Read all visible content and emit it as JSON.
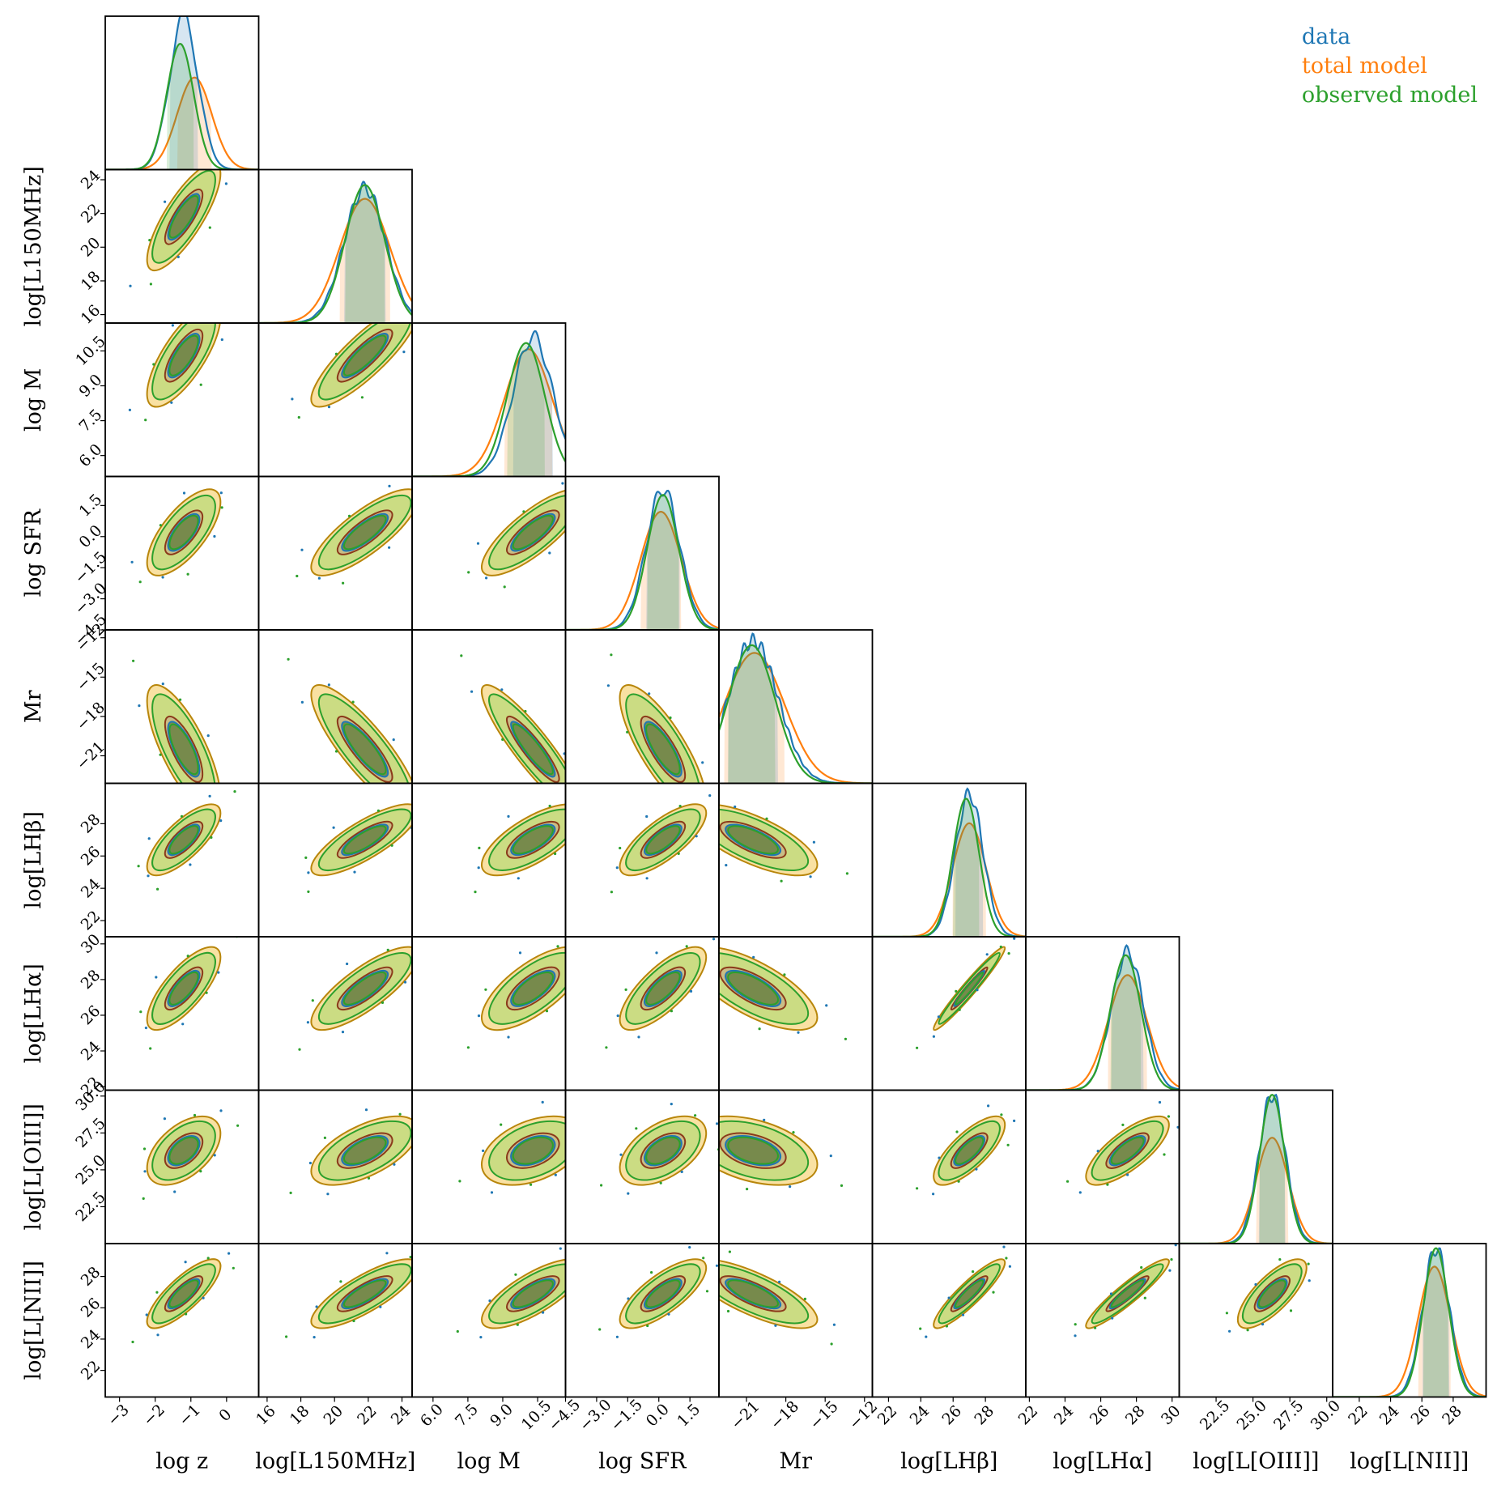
{
  "chart_data": {
    "type": "corner",
    "variables": [
      {
        "key": "logz",
        "label": "log z",
        "ticks": [
          "−3",
          "−2",
          "−1",
          "0"
        ],
        "tick_values": [
          -3,
          -2,
          -1,
          0
        ],
        "range": [
          -3.4,
          0.9
        ]
      },
      {
        "key": "L150",
        "label": "log[L150MHz]",
        "ticks": [
          "16",
          "18",
          "20",
          "22",
          "24"
        ],
        "tick_values": [
          16,
          18,
          20,
          22,
          24
        ],
        "range": [
          15.5,
          24.6
        ]
      },
      {
        "key": "logM",
        "label": "log M",
        "ticks": [
          "6.0",
          "7.5",
          "9.0",
          "10.5"
        ],
        "tick_values": [
          6.0,
          7.5,
          9.0,
          10.5
        ],
        "range": [
          5.1,
          11.7
        ]
      },
      {
        "key": "SFR",
        "label": "log SFR",
        "ticks": [
          "−4.5",
          "−3.0",
          "−1.5",
          "0.0",
          "1.5"
        ],
        "tick_values": [
          -4.5,
          -3.0,
          -1.5,
          0.0,
          1.5
        ],
        "range": [
          -4.5,
          2.9
        ]
      },
      {
        "key": "Mr",
        "label": "Mr",
        "ticks": [
          "−21",
          "−18",
          "−15",
          "−12"
        ],
        "tick_values": [
          -21,
          -18,
          -15,
          -12
        ],
        "range": [
          -23.1,
          -11.4
        ]
      },
      {
        "key": "LHb",
        "label": "log[LHβ]",
        "ticks": [
          "22",
          "24",
          "26",
          "28"
        ],
        "tick_values": [
          22,
          24,
          26,
          28
        ],
        "range": [
          21.0,
          30.5
        ]
      },
      {
        "key": "LHa",
        "label": "log[LHα]",
        "ticks": [
          "22",
          "24",
          "26",
          "28",
          "30"
        ],
        "tick_values": [
          22,
          24,
          26,
          28,
          30
        ],
        "range": [
          21.8,
          30.4
        ]
      },
      {
        "key": "LOIII",
        "label": "log[L[OIII]]",
        "ticks": [
          "22.5",
          "25.0",
          "27.5",
          "30.0"
        ],
        "tick_values": [
          22.5,
          25.0,
          27.5,
          30.0
        ],
        "range": [
          20.0,
          30.4
        ]
      },
      {
        "key": "LNII",
        "label": "log[L[NII]]",
        "ticks": [
          "22",
          "24",
          "26",
          "28"
        ],
        "tick_values": [
          22,
          24,
          26,
          28
        ],
        "range": [
          20.3,
          30.1
        ]
      }
    ],
    "series": [
      {
        "name": "data",
        "color": "#1f77b4"
      },
      {
        "name": "total model",
        "color": "#ff7f0e"
      },
      {
        "name": "observed model",
        "color": "#2ca02c"
      }
    ],
    "marginal_peaks": {
      "data": [
        -1.2,
        21.8,
        10.3,
        0.2,
        -20.5,
        27.0,
        27.5,
        26.3,
        26.9
      ],
      "total model": [
        -0.9,
        21.8,
        10.1,
        0.1,
        -20.4,
        27.0,
        27.5,
        26.3,
        26.8
      ],
      "observed model": [
        -1.3,
        21.8,
        10.0,
        0.2,
        -20.6,
        26.8,
        27.4,
        26.3,
        26.9
      ]
    },
    "marginal_peak_heights": {
      "data": [
        1.0,
        0.88,
        0.91,
        0.92,
        0.93,
        0.93,
        0.9,
        0.97,
        0.97
      ],
      "total model": [
        0.6,
        0.81,
        0.83,
        0.77,
        0.85,
        0.74,
        0.75,
        0.69,
        0.85
      ],
      "observed model": [
        0.82,
        0.9,
        0.87,
        0.88,
        0.9,
        0.9,
        0.88,
        0.97,
        0.97
      ]
    },
    "correlations": [
      [
        1.0,
        0.8,
        0.75,
        0.7,
        -0.75,
        0.75,
        0.75,
        0.5,
        0.8
      ],
      [
        0.8,
        1.0,
        0.85,
        0.8,
        -0.85,
        0.8,
        0.8,
        0.6,
        0.8
      ],
      [
        0.75,
        0.85,
        1.0,
        0.8,
        -0.9,
        0.7,
        0.7,
        0.4,
        0.75
      ],
      [
        0.7,
        0.8,
        0.8,
        1.0,
        -0.8,
        0.75,
        0.75,
        0.5,
        0.75
      ],
      [
        -0.75,
        -0.85,
        -0.9,
        -0.8,
        1.0,
        -0.7,
        -0.7,
        -0.4,
        -0.75
      ],
      [
        0.75,
        0.8,
        0.7,
        0.75,
        -0.7,
        1.0,
        0.97,
        0.75,
        0.9
      ],
      [
        0.75,
        0.8,
        0.7,
        0.75,
        -0.7,
        0.97,
        1.0,
        0.75,
        0.93
      ],
      [
        0.5,
        0.6,
        0.4,
        0.5,
        -0.4,
        0.75,
        0.75,
        1.0,
        0.75
      ],
      [
        0.8,
        0.8,
        0.75,
        0.75,
        -0.75,
        0.9,
        0.93,
        0.75,
        1.0
      ]
    ],
    "legend": {
      "position": "top-right"
    },
    "grid": false
  },
  "legend": {
    "items": [
      {
        "label": "data",
        "color": "#1f77b4"
      },
      {
        "label": "total model",
        "color": "#ff7f0e"
      },
      {
        "label": "observed model",
        "color": "#2ca02c"
      }
    ]
  }
}
